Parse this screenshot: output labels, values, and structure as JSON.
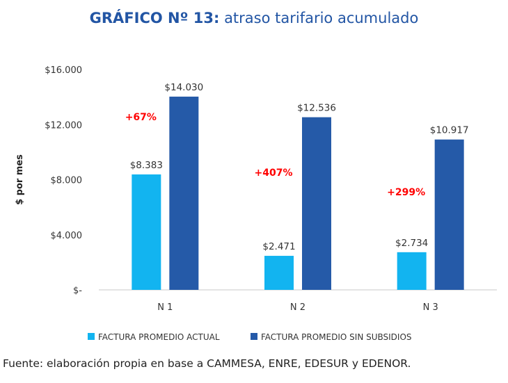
{
  "header": {
    "title_bold": "GRÁFICO Nº 13:",
    "title_rest": " atraso tarifario acumulado"
  },
  "chart_data": {
    "type": "bar",
    "title": "GRÁFICO Nº 13: atraso tarifario acumulado",
    "xlabel": "",
    "ylabel": "$ por mes",
    "ylim": [
      0,
      16000
    ],
    "yticks": [
      0,
      4000,
      8000,
      12000,
      16000
    ],
    "ytick_labels": [
      "$-",
      "$4.000",
      "$8.000",
      "$12.000",
      "$16.000"
    ],
    "categories": [
      "N 1",
      "N 2",
      "N 3"
    ],
    "series": [
      {
        "name": "FACTURA PROMEDIO ACTUAL",
        "color": "#12b4f0",
        "values": [
          8383,
          2471,
          2734
        ],
        "labels": [
          "$8.383",
          "$2.471",
          "$2.734"
        ]
      },
      {
        "name": "FACTURA PROMEDIO SIN SUBSIDIOS",
        "color": "#255aa8",
        "values": [
          14030,
          12536,
          10917
        ],
        "labels": [
          "$14.030",
          "$12.536",
          "$10.917"
        ]
      }
    ],
    "annotations": [
      "+67%",
      "+407%",
      "+299%"
    ],
    "annotation_color": "#ff0000",
    "grid": false,
    "legend_position": "bottom"
  },
  "footer": {
    "source": "Fuente: elaboración propia en base a CAMMESA, ENRE, EDESUR y EDENOR."
  }
}
